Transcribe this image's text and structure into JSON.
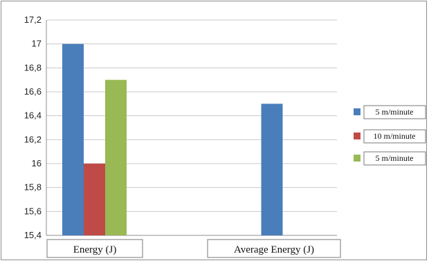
{
  "chart_data": {
    "type": "bar",
    "categories": [
      "Energy  (J)",
      "Average  Energy  (J)"
    ],
    "series": [
      {
        "name": "5 m/minute",
        "color": "#4a7ebb",
        "values": [
          17.0,
          16.5
        ]
      },
      {
        "name": "10 m/minute",
        "color": "#be4b48",
        "values": [
          16.0,
          null
        ]
      },
      {
        "name": "5 m/minute",
        "color": "#98b954",
        "values": [
          16.7,
          null
        ]
      }
    ],
    "ylim": [
      15.4,
      17.2
    ],
    "yticks": [
      15.4,
      15.6,
      15.8,
      16.0,
      16.2,
      16.4,
      16.6,
      16.8,
      17.0,
      17.2
    ],
    "ytick_labels": [
      "15,4",
      "15,6",
      "15,8",
      "16",
      "16,2",
      "16,4",
      "16,6",
      "16,8",
      "17",
      "17,2"
    ],
    "grid": true,
    "legend_position": "right"
  }
}
